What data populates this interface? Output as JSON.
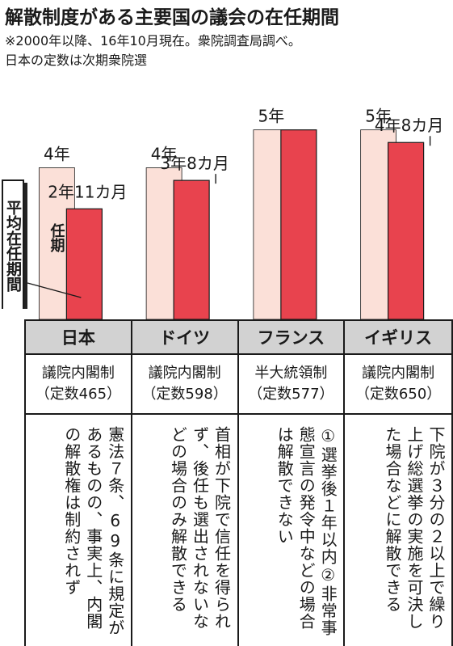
{
  "title": "解散制度がある主要国の議会の在任期間",
  "notes": [
    "※2000年以降、16年10月現在。衆院調査局調べ。",
    "日本の定数は次期衆院選"
  ],
  "colors": {
    "statutory": "#fbe0d8",
    "average": "#e8434e",
    "header": "#d2d2d2",
    "border": "#1a1a1a"
  },
  "legend": {
    "average_label": "平均在任期間",
    "term_label": "任期"
  },
  "chart_data": {
    "type": "bar",
    "unit": "years",
    "categories": [
      "日本",
      "ドイツ",
      "フランス",
      "イギリス"
    ],
    "series": [
      {
        "name": "任期",
        "values": [
          4,
          4,
          5,
          5
        ],
        "labels": [
          "4年",
          "4年",
          "5年",
          "5年"
        ]
      },
      {
        "name": "平均在任期間",
        "values": [
          2.9167,
          3.6667,
          5,
          4.6667
        ],
        "labels": [
          "2年11カ月",
          "3年8カ月",
          "",
          "4年8カ月"
        ]
      }
    ],
    "ylim": [
      0,
      6.08
    ]
  },
  "countries": [
    {
      "name": "日本",
      "system": "議院内閣制",
      "seats": "（定数465）",
      "note": "憲法７条、69条に規定があるものの、事実上、内閣の解散権は制約されず"
    },
    {
      "name": "ドイツ",
      "system": "議院内閣制",
      "seats": "（定数598）",
      "note": "首相が下院で信任を得られず、後任も選出されないなどの場合のみ解散できる"
    },
    {
      "name": "フランス",
      "system": "半大統領制",
      "seats": "（定数577）",
      "note": "①選挙後１年以内②非常事態宣言の発令中などの場合は解散できない"
    },
    {
      "name": "イギリス",
      "system": "議院内閣制",
      "seats": "（定数650）",
      "note": "下院が３分の２以上で繰り上げ総選挙の実施を可決した場合などに解散できる"
    }
  ]
}
